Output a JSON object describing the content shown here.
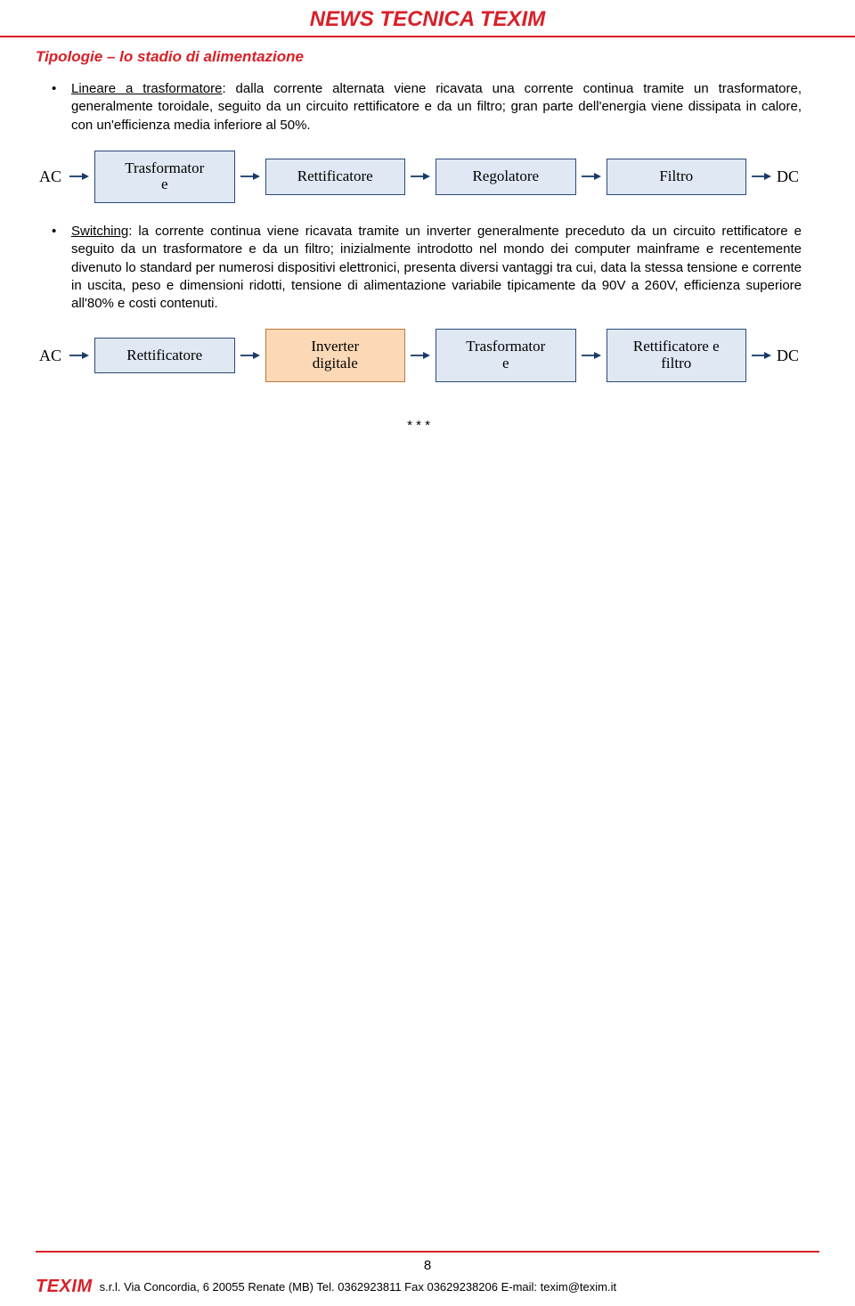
{
  "header": {
    "title": "NEWS TECNICA TEXIM"
  },
  "section": {
    "title": "Tipologie – lo stadio di alimentazione",
    "bullet1_underline": "Lineare a trasformatore",
    "bullet1_text": ": dalla corrente alternata viene ricavata una corrente continua tramite un trasformatore, generalmente toroidale, seguito da un circuito rettificatore e da un filtro; gran parte dell'energia viene dissipata in calore, con un'efficienza media inferiore al 50%.",
    "bullet2_underline": "Switching",
    "bullet2_text": ": la corrente continua viene ricavata tramite un inverter generalmente preceduto da un circuito rettificatore e seguito da un trasformatore e da un filtro; inizialmente introdotto nel mondo dei computer mainframe e recentemente divenuto lo standard per numerosi dispositivi elettronici, presenta diversi vantaggi tra cui, data la stessa tensione e corrente in uscita, peso e dimensioni ridotti, tensione di alimentazione variabile tipicamente da 90V a 260V, efficienza superiore all'80% e costi contenuti."
  },
  "flow1": {
    "input": "AC",
    "boxes": [
      "Trasformator\ne",
      "Rettificatore",
      "Regolatore",
      "Filtro"
    ],
    "output": "DC",
    "box_bg": "#e0e8f4",
    "box_border": "#2a4a7a"
  },
  "flow2": {
    "input": "AC",
    "boxes": [
      "Rettificatore",
      "Inverter\ndigitale",
      "Trasformator\ne",
      "Rettificatore e\nfiltro"
    ],
    "output": "DC",
    "highlight_index": 1,
    "highlight_bg": "#fcd9b6",
    "highlight_border": "#b87a3a"
  },
  "arrow_color": "#1a3a6a",
  "separator": "* * *",
  "footer": {
    "page": "8",
    "logo": "TEXIM",
    "text": "s.r.l. Via Concordia, 6 20055 Renate (MB) Tel. 0362923811 Fax 03629238206 E-mail: texim@texim.it"
  }
}
